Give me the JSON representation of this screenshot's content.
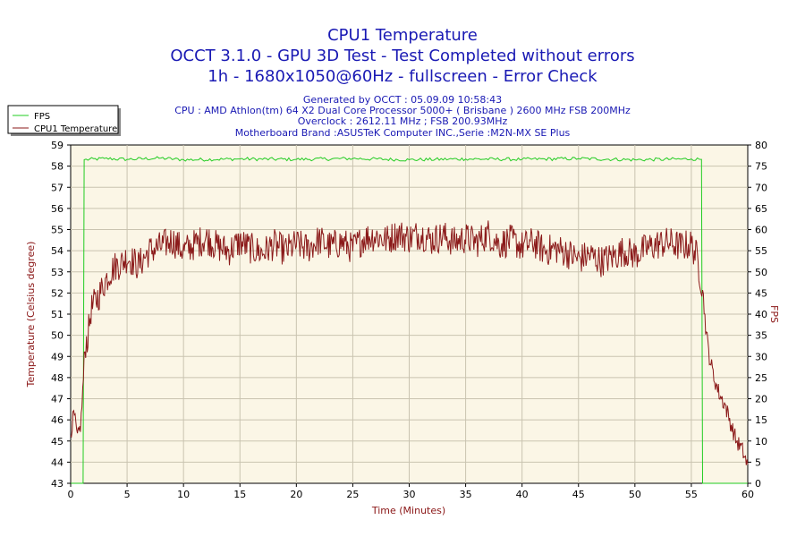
{
  "chart_data": {
    "type": "line",
    "title": "CPU1 Temperature",
    "subtitle_lines": [
      "OCCT 3.1.0 - GPU 3D Test - Test Completed without errors",
      "1h - 1680x1050@60Hz - fullscreen - Error Check"
    ],
    "info_lines": [
      "Generated by OCCT : 05.09.09 10:58:43",
      "CPU : AMD Athlon(tm) 64 X2 Dual Core Processor 5000+ ( Brisbane ) 2600 MHz FSB 200MHz",
      "Overclock : 2612.11 MHz ; FSB 200.93MHz",
      "Motherboard Brand :ASUSTeK Computer INC.,Serie :M2N-MX SE Plus"
    ],
    "xlabel": "Time (Minutes)",
    "ylabel_left": "Temperature (Celsius degree)",
    "ylabel_right": "FPS",
    "xlim": [
      0,
      60
    ],
    "ylim_left": [
      43,
      59
    ],
    "ylim_right": [
      0,
      80
    ],
    "x_ticks": [
      "0",
      "5",
      "10",
      "15",
      "20",
      "25",
      "30",
      "35",
      "40",
      "45",
      "50",
      "55",
      "60"
    ],
    "y_left_ticks": [
      "43",
      "44",
      "45",
      "46",
      "47",
      "48",
      "49",
      "50",
      "51",
      "52",
      "53",
      "54",
      "55",
      "56",
      "57",
      "58",
      "59"
    ],
    "y_right_ticks": [
      "0",
      "5",
      "10",
      "15",
      "20",
      "25",
      "30",
      "35",
      "40",
      "45",
      "50",
      "55",
      "60",
      "65",
      "70",
      "75",
      "80"
    ],
    "grid": true,
    "legend_position": "top-left",
    "series": [
      {
        "name": "FPS",
        "axis": "right",
        "color": "#22cc22",
        "x": [
          0,
          1.1,
          1.2,
          3,
          5,
          8,
          10,
          15,
          20,
          25,
          30,
          35,
          40,
          45,
          50,
          55,
          55.9,
          56.0,
          60
        ],
        "y": [
          0,
          0,
          76.5,
          76.8,
          76.6,
          76.9,
          76.5,
          76.7,
          76.6,
          76.8,
          76.5,
          76.7,
          76.6,
          76.8,
          76.5,
          76.7,
          76.6,
          0,
          0
        ]
      },
      {
        "name": "CPU1 Temperature",
        "axis": "left",
        "color": "#8b1a1a",
        "x": [
          0,
          0.3,
          0.6,
          0.9,
          1.1,
          1.3,
          1.5,
          1.8,
          2.2,
          2.6,
          3.0,
          3.5,
          4.0,
          4.5,
          5.0,
          6,
          7,
          8,
          9,
          10,
          11,
          12,
          13,
          14,
          15,
          16,
          17,
          18,
          19,
          20,
          21,
          22,
          23,
          24,
          25,
          26,
          27,
          28,
          29,
          30,
          31,
          32,
          33,
          34,
          35,
          36,
          37,
          38,
          39,
          40,
          41,
          42,
          43,
          44,
          45,
          46,
          47,
          48,
          49,
          50,
          51,
          52,
          53,
          54,
          55,
          55.5,
          56.0,
          56.3,
          56.6,
          57.0,
          57.5,
          58.0,
          58.5,
          59.0,
          59.5,
          60
        ],
        "y": [
          45.4,
          46.3,
          45.1,
          45.8,
          47.6,
          49.6,
          49.8,
          51.2,
          51.6,
          52.0,
          52.5,
          53.0,
          53.3,
          53.4,
          53.7,
          53.3,
          54.0,
          54.2,
          54.5,
          54.0,
          54.3,
          54.6,
          54.2,
          54.0,
          54.4,
          54.1,
          53.9,
          54.3,
          54.0,
          54.3,
          54.1,
          54.5,
          54.2,
          54.4,
          54.1,
          54.6,
          54.7,
          54.5,
          54.8,
          54.6,
          54.8,
          54.5,
          54.7,
          54.4,
          54.6,
          54.4,
          54.8,
          54.3,
          54.5,
          54.2,
          54.4,
          54.0,
          54.1,
          53.9,
          53.6,
          53.8,
          53.5,
          53.7,
          54.0,
          53.8,
          54.1,
          54.3,
          54.4,
          54.2,
          54.3,
          53.7,
          52.2,
          50.2,
          49.0,
          48.0,
          47.2,
          46.7,
          45.8,
          45.0,
          44.6,
          43.8
        ]
      }
    ]
  }
}
